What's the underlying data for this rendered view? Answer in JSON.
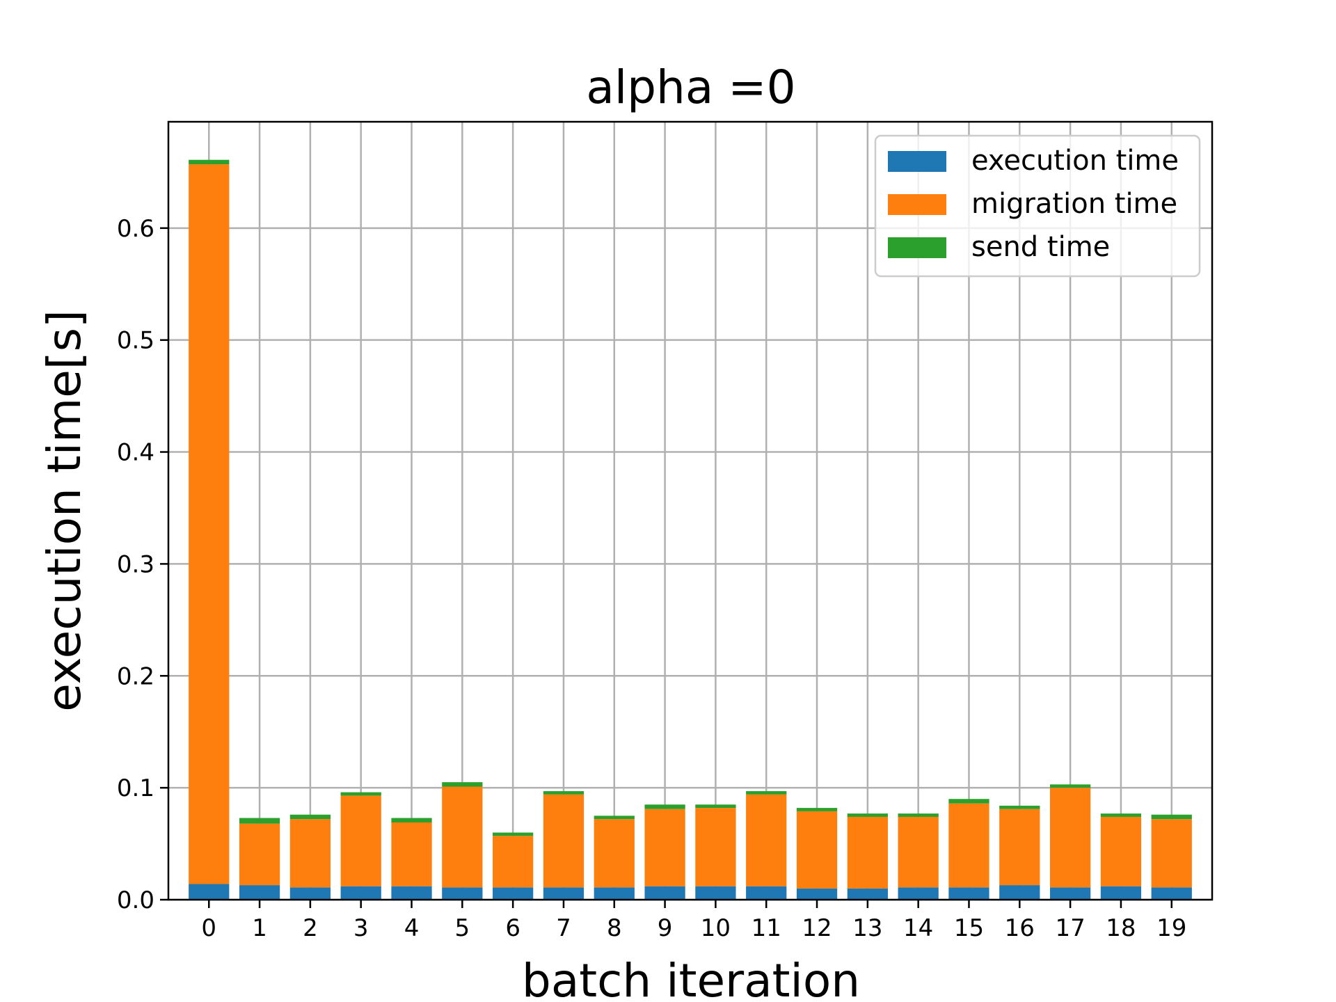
{
  "chart_data": {
    "type": "bar",
    "stacked": true,
    "title": "alpha =0",
    "xlabel": "batch iteration",
    "ylabel": "execution time[s]",
    "categories": [
      "0",
      "1",
      "2",
      "3",
      "4",
      "5",
      "6",
      "7",
      "8",
      "9",
      "10",
      "11",
      "12",
      "13",
      "14",
      "15",
      "16",
      "17",
      "18",
      "19"
    ],
    "ylim": [
      0,
      0.695
    ],
    "yticks": [
      "0.0",
      "0.1",
      "0.2",
      "0.3",
      "0.4",
      "0.5",
      "0.6"
    ],
    "ytick_values": [
      0.0,
      0.1,
      0.2,
      0.3,
      0.4,
      0.5,
      0.6
    ],
    "grid": true,
    "legend_position": "top-right",
    "series": [
      {
        "name": "execution time",
        "color": "#1f77b4",
        "values": [
          0.014,
          0.013,
          0.011,
          0.012,
          0.012,
          0.011,
          0.011,
          0.011,
          0.011,
          0.012,
          0.012,
          0.012,
          0.01,
          0.01,
          0.011,
          0.011,
          0.013,
          0.011,
          0.012,
          0.011
        ]
      },
      {
        "name": "migration time",
        "color": "#ff7f0e",
        "values": [
          0.643,
          0.055,
          0.061,
          0.081,
          0.057,
          0.09,
          0.046,
          0.083,
          0.061,
          0.069,
          0.07,
          0.082,
          0.069,
          0.064,
          0.063,
          0.075,
          0.068,
          0.089,
          0.062,
          0.061
        ]
      },
      {
        "name": "send time",
        "color": "#2ca02c",
        "values": [
          0.004,
          0.005,
          0.004,
          0.003,
          0.004,
          0.004,
          0.003,
          0.003,
          0.003,
          0.004,
          0.003,
          0.003,
          0.003,
          0.003,
          0.003,
          0.004,
          0.003,
          0.003,
          0.003,
          0.004
        ]
      }
    ]
  }
}
